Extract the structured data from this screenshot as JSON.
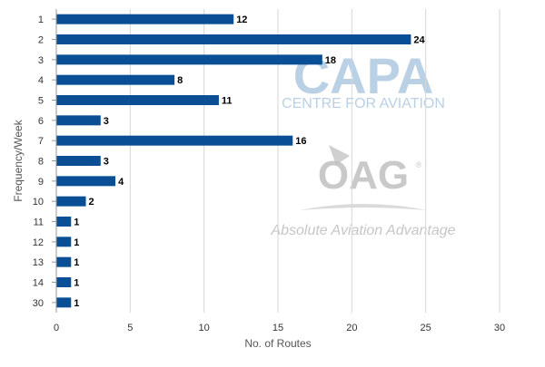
{
  "colors": {
    "bar": "#0a4f96",
    "grid": "#d6d6d6",
    "axis": "#9a9a9a",
    "text": "#333333",
    "value_text": "#000000",
    "watermark_blue": "#a9c4df",
    "watermark_gray": "#bcbcbc"
  },
  "watermark": {
    "capa_title": "CAPA",
    "capa_subtitle": "CENTRE FOR AVIATION",
    "oag_title": "OAG",
    "oag_mark": "®",
    "oag_tagline": "Absolute Aviation Advantage"
  },
  "chart_data": {
    "type": "bar",
    "orientation": "horizontal",
    "categories": [
      "1",
      "2",
      "3",
      "4",
      "5",
      "6",
      "7",
      "8",
      "9",
      "10",
      "11",
      "12",
      "13",
      "14",
      "30"
    ],
    "values": [
      12,
      24,
      18,
      8,
      11,
      3,
      16,
      3,
      4,
      2,
      1,
      1,
      1,
      1,
      1
    ],
    "value_labels": [
      "12",
      "24",
      "18",
      "8",
      "11",
      "3",
      "16",
      "3",
      "4",
      "2",
      "1",
      "1",
      "1",
      "1",
      "1"
    ],
    "xlim": [
      0,
      30
    ],
    "x_ticks": [
      0,
      5,
      10,
      15,
      20,
      25,
      30
    ],
    "x_tick_labels": [
      "0",
      "5",
      "10",
      "15",
      "20",
      "25",
      "30"
    ],
    "xlabel": "No. of Routes",
    "ylabel": "Frequency/Week",
    "grid": true,
    "legend": "none"
  }
}
